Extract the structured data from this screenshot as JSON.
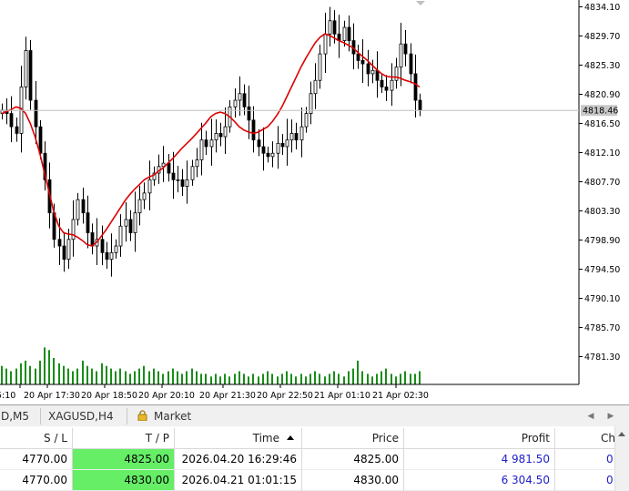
{
  "chart": {
    "symbol": "XAGUSD",
    "price_axis": [
      4834.1,
      4829.7,
      4825.3,
      4820.9,
      4816.5,
      4812.1,
      4807.7,
      4803.3,
      4798.9,
      4794.5,
      4790.1,
      4785.7,
      4781.3
    ],
    "current_price": "4818.46",
    "time_axis": [
      "5:10",
      "20 Apr 17:30",
      "20 Apr 18:50",
      "20 Apr 20:10",
      "20 Apr 21:30",
      "20 Apr 22:50",
      "21 Apr 01:10",
      "21 Apr 02:30"
    ],
    "colors": {
      "candle": "#000000",
      "ma": "#dd0000",
      "volume": "#1a8c1a",
      "grid": "#c0c0c0"
    }
  },
  "chart_data": {
    "type": "candlestick",
    "ylim": [
      4779.0,
      4836.0
    ],
    "close": [
      4818.5,
      4818.0,
      4816.0,
      4815.0,
      4822.0,
      4827.5,
      4820.0,
      4816.0,
      4812.0,
      4808.0,
      4803.0,
      4799.0,
      4798.0,
      4796.0,
      4799.0,
      4802.0,
      4805.0,
      4803.0,
      4800.0,
      4798.0,
      4799.0,
      4797.0,
      4796.0,
      4797.0,
      4798.0,
      4801.0,
      4802.0,
      4800.0,
      4803.0,
      4805.0,
      4806.0,
      4808.0,
      4809.0,
      4810.0,
      4810.5,
      4809.0,
      4808.0,
      4808.0,
      4807.0,
      4808.0,
      4810.0,
      4811.0,
      4814.0,
      4813.0,
      4814.0,
      4815.0,
      4814.5,
      4816.0,
      4819.0,
      4820.0,
      4821.0,
      4819.0,
      4817.0,
      4814.0,
      4813.0,
      4812.0,
      4811.5,
      4812.0,
      4813.5,
      4813.0,
      4814.0,
      4815.0,
      4814.0,
      4816.0,
      4818.0,
      4821.0,
      4823.0,
      4827.0,
      4830.0,
      4832.0,
      4830.0,
      4829.0,
      4831.0,
      4829.0,
      4827.0,
      4826.0,
      4825.5,
      4824.0,
      4824.5,
      4823.0,
      4822.0,
      4821.5,
      4823.0,
      4825.0,
      4828.5,
      4827.0,
      4824.0,
      4820.0,
      4818.5
    ],
    "ma": [
      4818.0,
      4818.3,
      4818.6,
      4819.0,
      4818.8,
      4818.0,
      4816.5,
      4814.5,
      4812.0,
      4809.0,
      4806.0,
      4803.0,
      4801.0,
      4800.0,
      4799.8,
      4799.7,
      4799.3,
      4798.8,
      4798.2,
      4798.0,
      4798.6,
      4799.5,
      4800.5,
      4801.6,
      4802.7,
      4803.8,
      4804.9,
      4805.8,
      4806.6,
      4807.3,
      4808.0,
      4808.4,
      4808.7,
      4809.3,
      4809.8,
      4810.5,
      4811.2,
      4812.0,
      4812.8,
      4813.5,
      4814.2,
      4815.0,
      4815.8,
      4816.6,
      4817.5,
      4818.0,
      4818.2,
      4818.0,
      4817.5,
      4816.8,
      4816.0,
      4815.5,
      4815.2,
      4815.0,
      4815.2,
      4815.6,
      4816.0,
      4816.8,
      4817.8,
      4819.0,
      4820.5,
      4822.0,
      4823.5,
      4825.0,
      4826.3,
      4827.5,
      4828.7,
      4829.5,
      4830.0,
      4829.8,
      4829.4,
      4829.0,
      4828.7,
      4828.3,
      4827.9,
      4827.2,
      4826.6,
      4826.0,
      4825.3,
      4824.6,
      4824.0,
      4823.6,
      4823.5,
      4823.5,
      4823.3,
      4823.0,
      4822.8,
      4822.5,
      4822.0
    ],
    "volume": [
      7,
      6,
      5,
      6,
      8,
      9,
      7,
      6,
      9,
      14,
      13,
      10,
      8,
      7,
      6,
      5,
      6,
      9,
      7,
      6,
      5,
      8,
      7,
      6,
      5,
      6,
      5,
      4,
      5,
      6,
      7,
      5,
      6,
      5,
      4,
      5,
      6,
      5,
      4,
      5,
      6,
      5,
      4,
      4,
      3,
      4,
      3,
      4,
      3,
      4,
      5,
      4,
      3,
      4,
      3,
      4,
      5,
      4,
      3,
      4,
      5,
      4,
      3,
      4,
      3,
      4,
      5,
      4,
      3,
      4,
      5,
      4,
      3,
      5,
      6,
      9,
      5,
      4,
      3,
      4,
      5,
      6,
      4,
      3,
      4,
      5,
      4,
      4,
      5
    ]
  },
  "tabs": [
    "D,M5",
    "XAGUSD,H4",
    "Market"
  ],
  "table": {
    "columns": [
      "S / L",
      "T / P",
      "Time",
      "Price",
      "Profit",
      "Ch"
    ],
    "rows": [
      {
        "sl": "4770.00",
        "tp": "4825.00",
        "time": "2026.04.20 16:29:46",
        "price": "4825.00",
        "profit": "4 981.50",
        "ch": "0"
      },
      {
        "sl": "4770.00",
        "tp": "4830.00",
        "time": "2026.04.21 01:01:15",
        "price": "4830.00",
        "profit": "6 304.50",
        "ch": "0"
      }
    ]
  }
}
